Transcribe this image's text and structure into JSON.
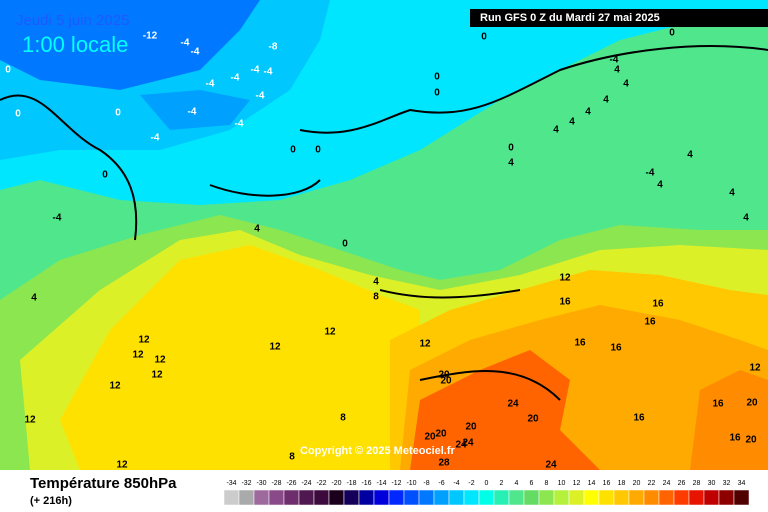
{
  "header": {
    "date": "Jeudi 5 juin 2025",
    "time": "1:00 locale",
    "run": "Run GFS 0 Z du Mardi 27 mai 2025"
  },
  "copyright": "Copyright © 2025 Meteociel.fr",
  "footer": {
    "title": "Température 850hPa",
    "lead": "(+ 216h)"
  },
  "scale": {
    "values": [
      -34,
      -32,
      -30,
      -28,
      -26,
      -24,
      -22,
      -20,
      -18,
      -16,
      -14,
      -12,
      -10,
      -8,
      -6,
      -4,
      -2,
      0,
      2,
      4,
      6,
      8,
      10,
      12,
      14,
      16,
      18,
      20,
      22,
      24,
      26,
      28,
      30,
      32,
      34
    ],
    "colors": [
      "#cccccc",
      "#aaaaaa",
      "#9e6a9e",
      "#8a4a8a",
      "#6e2e6e",
      "#501850",
      "#3c0a3c",
      "#1a001a",
      "#14005a",
      "#0000a0",
      "#0000dc",
      "#0028ff",
      "#0050ff",
      "#0078ff",
      "#00a0ff",
      "#00c8ff",
      "#00e6ff",
      "#00ffe6",
      "#28f0b4",
      "#50e68c",
      "#64dc64",
      "#8ce650",
      "#b4f03c",
      "#dcf028",
      "#ffff00",
      "#ffe100",
      "#ffc800",
      "#ffaa00",
      "#ff8c00",
      "#ff6400",
      "#ff3c00",
      "#e61400",
      "#be0000",
      "#8c0000",
      "#500000"
    ]
  },
  "contour_labels": [
    -12,
    -4,
    -4,
    -8,
    -4,
    -4,
    -4,
    -4,
    -4,
    -4,
    -4,
    -4,
    -4,
    0,
    0,
    0,
    0,
    0,
    0,
    0,
    0,
    0,
    0,
    -4,
    4,
    4,
    4,
    4,
    4,
    4,
    0,
    4,
    4,
    -4,
    4,
    4,
    4,
    4,
    4,
    0,
    4,
    8,
    12,
    16,
    16,
    16,
    16,
    16,
    12,
    12,
    12,
    12,
    12,
    12,
    12,
    12,
    12,
    12,
    8,
    8,
    20,
    20,
    24,
    20,
    20,
    20,
    20,
    24,
    24,
    28,
    24,
    16,
    16,
    16,
    20,
    20,
    12
  ]
}
